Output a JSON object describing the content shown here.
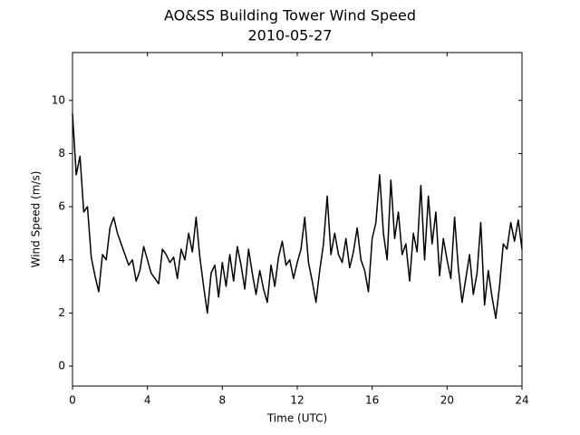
{
  "chart_data": {
    "type": "line",
    "title": "AO&SS Building Tower Wind Speed",
    "subtitle": "2010-05-27",
    "x_label": "Time (UTC)",
    "y_label": "Wind Speed (m/s)",
    "x": [
      0,
      0.2,
      0.4,
      0.6,
      0.8,
      1,
      1.2,
      1.4,
      1.6,
      1.8,
      2,
      2.2,
      2.4,
      2.6,
      2.8,
      3,
      3.2,
      3.4,
      3.6,
      3.8,
      4,
      4.2,
      4.4,
      4.6,
      4.8,
      5,
      5.2,
      5.4,
      5.6,
      5.8,
      6,
      6.2,
      6.4,
      6.6,
      6.8,
      7,
      7.2,
      7.4,
      7.6,
      7.8,
      8,
      8.2,
      8.4,
      8.6,
      8.8,
      9,
      9.2,
      9.4,
      9.6,
      9.8,
      10,
      10.2,
      10.4,
      10.6,
      10.8,
      11,
      11.2,
      11.4,
      11.6,
      11.8,
      12,
      12.2,
      12.4,
      12.6,
      12.8,
      13,
      13.2,
      13.4,
      13.6,
      13.8,
      14,
      14.2,
      14.4,
      14.6,
      14.8,
      15,
      15.2,
      15.4,
      15.6,
      15.8,
      16,
      16.2,
      16.4,
      16.6,
      16.8,
      17,
      17.2,
      17.4,
      17.6,
      17.8,
      18,
      18.2,
      18.4,
      18.6,
      18.8,
      19,
      19.2,
      19.4,
      19.6,
      19.8,
      20,
      20.2,
      20.4,
      20.6,
      20.8,
      21,
      21.2,
      21.4,
      21.6,
      21.8,
      22,
      22.2,
      22.4,
      22.6,
      22.8,
      23,
      23.2,
      23.4,
      23.6,
      23.8,
      24
    ],
    "series": [
      {
        "color": "#000000",
        "values": [
          9.5,
          7.2,
          7.9,
          5.8,
          6.0,
          4.1,
          3.4,
          2.8,
          4.2,
          4.0,
          5.2,
          5.6,
          5.0,
          4.6,
          4.2,
          3.8,
          4.0,
          3.2,
          3.6,
          4.5,
          4.0,
          3.5,
          3.3,
          3.1,
          4.4,
          4.2,
          3.9,
          4.1,
          3.3,
          4.4,
          4.0,
          5.0,
          4.3,
          5.6,
          4.1,
          3.0,
          2.0,
          3.5,
          3.8,
          2.6,
          3.9,
          3.0,
          4.2,
          3.2,
          4.5,
          3.8,
          2.9,
          4.4,
          3.5,
          2.7,
          3.6,
          2.9,
          2.4,
          3.8,
          3.0,
          4.1,
          4.7,
          3.8,
          4.0,
          3.3,
          3.9,
          4.4,
          5.6,
          3.9,
          3.2,
          2.4,
          3.6,
          4.6,
          6.4,
          4.2,
          5.0,
          4.2,
          3.9,
          4.8,
          3.7,
          4.3,
          5.2,
          4.0,
          3.6,
          2.8,
          4.8,
          5.4,
          7.2,
          5.0,
          4.0,
          7.0,
          4.8,
          5.8,
          4.2,
          4.6,
          3.2,
          5.0,
          4.3,
          6.8,
          4.0,
          6.4,
          4.6,
          5.8,
          3.4,
          4.8,
          4.0,
          3.3,
          5.6,
          3.7,
          2.4,
          3.3,
          4.2,
          2.7,
          3.5,
          5.4,
          2.3,
          3.6,
          2.6,
          1.8,
          3.0,
          4.6,
          4.4,
          5.4,
          4.7,
          5.5,
          4.4
        ]
      }
    ],
    "xlim": [
      0,
      24
    ],
    "xticks": [
      0,
      4,
      8,
      12,
      16,
      20,
      24
    ],
    "ylim": [
      -0.75,
      11.8
    ],
    "yticks": [
      0,
      2,
      4,
      6,
      8,
      10
    ]
  }
}
